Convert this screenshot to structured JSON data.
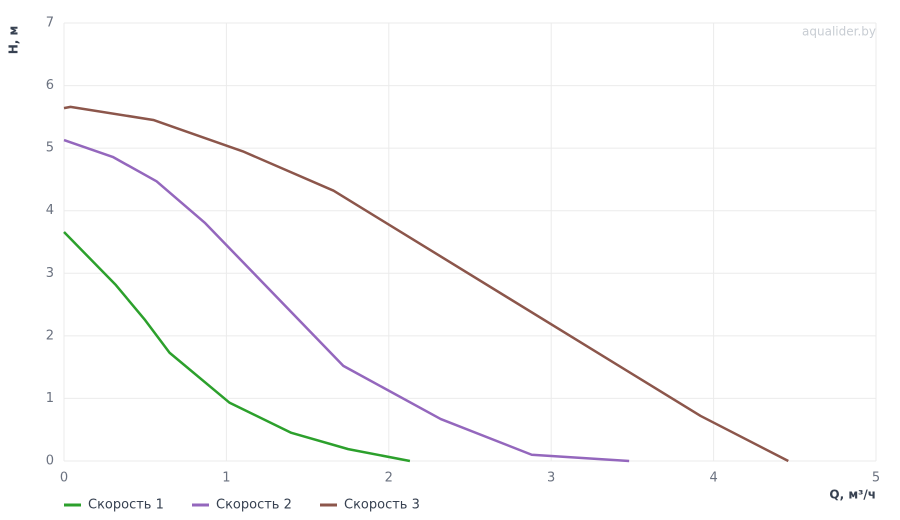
{
  "chart_data": {
    "type": "line",
    "x_label": "Q, м³/ч",
    "y_label": "H, м",
    "watermark": "aqualider.by",
    "xlim": [
      0,
      5
    ],
    "xticks": [
      0,
      1,
      2,
      3,
      4,
      5
    ],
    "ylim": [
      0,
      7
    ],
    "yticks": [
      0,
      1,
      2,
      3,
      4,
      5,
      6,
      7
    ],
    "grid": true,
    "legend": "bottom-left",
    "series": [
      {
        "name": "Скорость 1",
        "color": "#2ca02c",
        "x": [
          0,
          0.32,
          0.5,
          0.65,
          1.02,
          1.4,
          1.75,
          2.13
        ],
        "values": [
          3.66,
          2.81,
          2.25,
          1.73,
          0.93,
          0.45,
          0.19,
          0
        ]
      },
      {
        "name": "Скорость 2",
        "color": "#9467bd",
        "x": [
          0,
          0.3,
          0.57,
          0.87,
          1.72,
          2.32,
          2.88,
          3.48
        ],
        "values": [
          5.13,
          4.86,
          4.47,
          3.8,
          1.52,
          0.67,
          0.1,
          0
        ]
      },
      {
        "name": "Скорость 3",
        "color": "#8c564b",
        "x": [
          0,
          0.04,
          0.55,
          1.1,
          1.66,
          3.92,
          4.46
        ],
        "values": [
          5.64,
          5.66,
          5.45,
          4.95,
          4.32,
          0.72,
          0
        ]
      }
    ]
  }
}
